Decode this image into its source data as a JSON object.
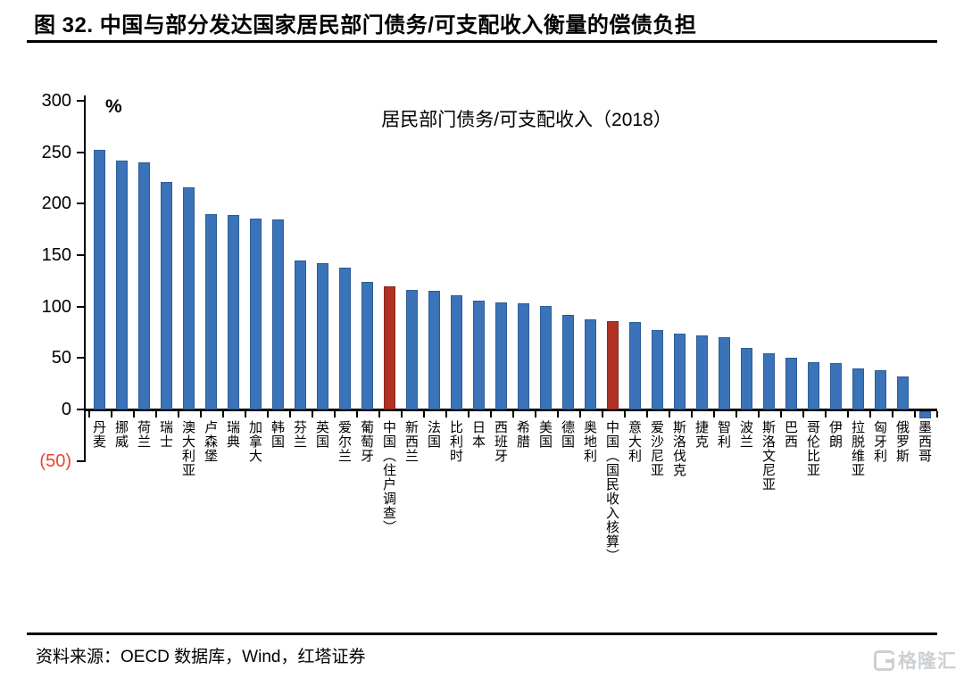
{
  "title": "图 32. 中国与部分发达国家居民部门债务/可支配收入衡量的偿债负担",
  "chart_data": {
    "type": "bar",
    "title": "居民部门债务/可支配收入（2018）",
    "unit_label": "%",
    "categories": [
      "丹麦",
      "挪威",
      "荷兰",
      "瑞士",
      "澳大利亚",
      "卢森堡",
      "瑞典",
      "加拿大",
      "韩国",
      "芬兰",
      "英国",
      "爱尔兰",
      "葡萄牙",
      "中国（住户调查）",
      "新西兰",
      "法国",
      "比利时",
      "日本",
      "西班牙",
      "希腊",
      "美国",
      "德国",
      "奥地利",
      "中国（国民收入核算）",
      "意大利",
      "爱沙尼亚",
      "斯洛伐克",
      "捷克",
      "智利",
      "波兰",
      "斯洛文尼亚",
      "巴西",
      "哥伦比亚",
      "伊朗",
      "拉脱维亚",
      "匈牙利",
      "俄罗斯",
      "墨西哥"
    ],
    "values": [
      252,
      242,
      240,
      221,
      216,
      190,
      189,
      186,
      185,
      145,
      142,
      138,
      124,
      120,
      116,
      115,
      111,
      106,
      104,
      103,
      101,
      92,
      88,
      86,
      85,
      77,
      74,
      72,
      70,
      60,
      55,
      50,
      46,
      45,
      40,
      38,
      32,
      -7
    ],
    "highlight_indices": [
      13,
      23
    ],
    "bar_color_default": "#3A73B8",
    "bar_color_highlight": "#B03224",
    "bar_border_default": "#2D5C96",
    "bar_border_highlight": "#8C2619",
    "ylim": [
      -50,
      300
    ],
    "ytick_values": [
      300,
      250,
      200,
      150,
      100,
      50,
      0,
      -50
    ],
    "ytick_labels": [
      "300",
      "250",
      "200",
      "150",
      "100",
      "50",
      "0",
      "(50)"
    ],
    "negative_tick_color": "#EE4130",
    "grid": false,
    "legend": "none"
  },
  "footer": {
    "source": "资料来源：OECD 数据库，Wind，红塔证券"
  },
  "watermark": {
    "logo_text": "格隆汇"
  }
}
